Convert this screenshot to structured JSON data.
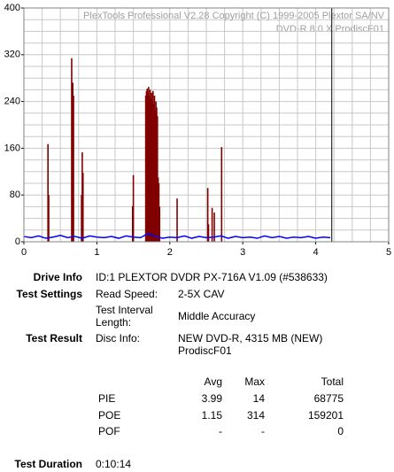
{
  "chart_data": {
    "type": "combo",
    "watermark": [
      "PlexTools Professional V2.28 Copyright (C) 1999-2005 Plextor SA/NV",
      "DVD-R    8.0 X    ProdiscF01"
    ],
    "xlim": [
      0,
      5
    ],
    "xticks": [
      0,
      1,
      2,
      3,
      4,
      5
    ],
    "ylim": [
      0,
      400
    ],
    "yticks": [
      0,
      80,
      160,
      240,
      320,
      400
    ],
    "grid": true,
    "minor_grid": {
      "x": 0.25,
      "y": 20
    },
    "end_marker": 4.22,
    "series": [
      {
        "kind": "bars",
        "color": "#800000",
        "x": [
          0.33,
          0.34,
          0.655,
          0.67,
          0.68,
          0.79,
          0.8,
          0.81,
          1.49,
          1.5,
          1.67,
          1.68,
          1.69,
          1.7,
          1.71,
          1.72,
          1.73,
          1.74,
          1.75,
          1.76,
          1.77,
          1.78,
          1.79,
          1.8,
          1.81,
          1.82,
          1.83,
          1.84,
          1.85,
          1.86,
          2.1,
          2.52,
          2.53,
          2.58,
          2.61,
          2.71
        ],
        "values": [
          167,
          80,
          314,
          272,
          250,
          80,
          153,
          118,
          61,
          114,
          250,
          258,
          262,
          255,
          265,
          250,
          260,
          245,
          255,
          240,
          258,
          235,
          250,
          225,
          240,
          230,
          215,
          110,
          100,
          60,
          74,
          92,
          30,
          58,
          50,
          162
        ]
      },
      {
        "kind": "line",
        "color": "#0000ff",
        "x": [
          0,
          0.1,
          0.2,
          0.3,
          0.4,
          0.5,
          0.6,
          0.7,
          0.8,
          0.9,
          1,
          1.1,
          1.2,
          1.3,
          1.4,
          1.5,
          1.6,
          1.7,
          1.8,
          1.9,
          2,
          2.1,
          2.2,
          2.3,
          2.4,
          2.5,
          2.6,
          2.7,
          2.8,
          2.9,
          3,
          3.1,
          3.2,
          3.3,
          3.4,
          3.5,
          3.6,
          3.7,
          3.8,
          3.9,
          4,
          4.1,
          4.2
        ],
        "values": [
          9,
          7,
          10,
          6,
          8,
          11,
          7,
          9,
          6,
          10,
          8,
          7,
          9,
          6,
          10,
          8,
          7,
          14,
          9,
          6,
          8,
          7,
          10,
          6,
          9,
          7,
          8,
          10,
          6,
          9,
          7,
          8,
          6,
          10,
          7,
          9,
          6,
          8,
          7,
          9,
          6,
          8,
          7
        ]
      }
    ]
  },
  "info": {
    "drive_info_label": "Drive Info",
    "drive_info": "ID:1 PLEXTOR DVDR PX-716A V1.09 (#538633)",
    "test_settings_label": "Test Settings",
    "read_speed_label": "Read Speed:",
    "read_speed": "2-5X CAV",
    "interval_label": "Test Interval Length:",
    "interval": "Middle Accuracy",
    "test_result_label": "Test Result",
    "disc_info_label": "Disc Info:",
    "disc_info": "NEW DVD-R, 4315 MB (NEW)",
    "disc_info_2": "ProdiscF01",
    "table": {
      "header": [
        "Avg",
        "Max",
        "Total"
      ],
      "rows": [
        [
          "PIE",
          3.99,
          14,
          68775
        ],
        [
          "POE",
          1.15,
          314,
          159201
        ],
        [
          "POF",
          "-",
          "-",
          0
        ]
      ]
    },
    "duration_label": "Test Duration",
    "duration": "0:10:14"
  }
}
